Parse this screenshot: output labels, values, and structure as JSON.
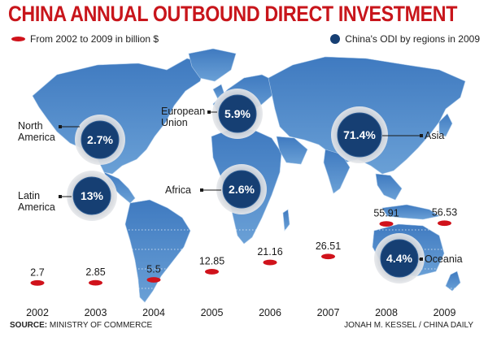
{
  "title": "CHINA ANNUAL OUTBOUND DIRECT INVESTMENT",
  "legend": {
    "annual": "From 2002 to 2009 in billion $",
    "regions": "China's ODI by regions in 2009"
  },
  "source": {
    "label": "SOURCE:",
    "text": "MINISTRY OF COMMERCE"
  },
  "credit": "JONAH M. KESSEL / CHINA DAILY",
  "colors": {
    "title": "#c8151b",
    "oval": "#d0121b",
    "circle": "#163f73",
    "map": "#4d86c5",
    "map_light": "#8bb6e0"
  },
  "chart_data": [
    {
      "type": "scatter",
      "title": "",
      "xlabel": "",
      "ylabel": "",
      "unit": "billion $",
      "x": [
        "2002",
        "2003",
        "2004",
        "2005",
        "2006",
        "2007",
        "2008",
        "2009"
      ],
      "values": [
        2.7,
        2.85,
        5.5,
        12.85,
        21.16,
        26.51,
        55.91,
        56.53
      ],
      "labels": [
        "2.7",
        "2.85",
        "5.5",
        "12.85",
        "21.16",
        "26.51",
        "55.91",
        "56.53"
      ],
      "ylim": [
        0,
        60
      ],
      "grid": true
    },
    {
      "type": "pie",
      "title": "",
      "regions": [
        {
          "name": "North America",
          "label_lines": [
            "North",
            "America"
          ],
          "value": 2.7,
          "display": "2.7%"
        },
        {
          "name": "European Union",
          "label_lines": [
            "European",
            "Union"
          ],
          "value": 5.9,
          "display": "5.9%"
        },
        {
          "name": "Asia",
          "label_lines": [
            "Asia"
          ],
          "value": 71.4,
          "display": "71.4%"
        },
        {
          "name": "Latin America",
          "label_lines": [
            "Latin",
            "America"
          ],
          "value": 13,
          "display": "13%"
        },
        {
          "name": "Africa",
          "label_lines": [
            "Africa"
          ],
          "value": 2.6,
          "display": "2.6%"
        },
        {
          "name": "Oceania",
          "label_lines": [
            "Oceania"
          ],
          "value": 4.4,
          "display": "4.4%"
        }
      ]
    }
  ]
}
